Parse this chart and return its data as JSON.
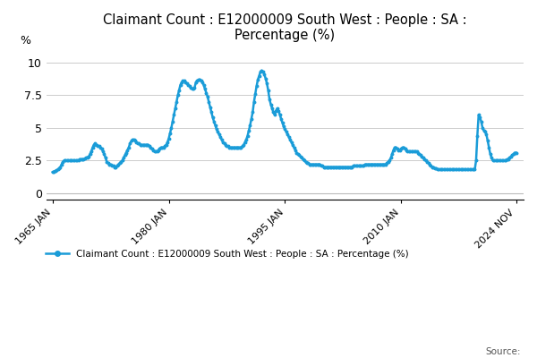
{
  "title": "Claimant Count : E12000009 South West : People : SA :\nPercentage (%)",
  "ylabel": "%",
  "legend_label": "Claimant Count : E12000009 South West : People : SA : Percentage (%)",
  "line_color": "#1a9cd8",
  "marker": "o",
  "markersize": 1.8,
  "linewidth": 1.8,
  "background_color": "#ffffff",
  "grid_color": "#cccccc",
  "yticks": [
    0,
    2.5,
    5,
    7.5,
    10
  ],
  "ylim": [
    -0.5,
    11
  ],
  "xtick_labels": [
    "1965 JAN",
    "1980 JAN",
    "1995 JAN",
    "2010 JAN",
    "2024 NOV"
  ],
  "source_text": "Source:",
  "xlim": [
    1964.2,
    2025.8
  ],
  "data": {
    "dates": [
      1965.0,
      1965.17,
      1965.33,
      1965.5,
      1965.67,
      1965.83,
      1966.0,
      1966.17,
      1966.33,
      1966.5,
      1966.67,
      1966.83,
      1967.0,
      1967.17,
      1967.33,
      1967.5,
      1967.67,
      1967.83,
      1968.0,
      1968.17,
      1968.33,
      1968.5,
      1968.67,
      1968.83,
      1969.0,
      1969.17,
      1969.33,
      1969.5,
      1969.67,
      1969.83,
      1970.0,
      1970.17,
      1970.33,
      1970.5,
      1970.67,
      1970.83,
      1971.0,
      1971.17,
      1971.33,
      1971.5,
      1971.67,
      1971.83,
      1972.0,
      1972.17,
      1972.33,
      1972.5,
      1972.67,
      1972.83,
      1973.0,
      1973.17,
      1973.33,
      1973.5,
      1973.67,
      1973.83,
      1974.0,
      1974.17,
      1974.33,
      1974.5,
      1974.67,
      1974.83,
      1975.0,
      1975.17,
      1975.33,
      1975.5,
      1975.67,
      1975.83,
      1976.0,
      1976.17,
      1976.33,
      1976.5,
      1976.67,
      1976.83,
      1977.0,
      1977.17,
      1977.33,
      1977.5,
      1977.67,
      1977.83,
      1978.0,
      1978.17,
      1978.33,
      1978.5,
      1978.67,
      1978.83,
      1979.0,
      1979.17,
      1979.33,
      1979.5,
      1979.67,
      1979.83,
      1980.0,
      1980.17,
      1980.33,
      1980.5,
      1980.67,
      1980.83,
      1981.0,
      1981.17,
      1981.33,
      1981.5,
      1981.67,
      1981.83,
      1982.0,
      1982.17,
      1982.33,
      1982.5,
      1982.67,
      1982.83,
      1983.0,
      1983.17,
      1983.33,
      1983.5,
      1983.67,
      1983.83,
      1984.0,
      1984.17,
      1984.33,
      1984.5,
      1984.67,
      1984.83,
      1985.0,
      1985.17,
      1985.33,
      1985.5,
      1985.67,
      1985.83,
      1986.0,
      1986.17,
      1986.33,
      1986.5,
      1986.67,
      1986.83,
      1987.0,
      1987.17,
      1987.33,
      1987.5,
      1987.67,
      1987.83,
      1988.0,
      1988.17,
      1988.33,
      1988.5,
      1988.67,
      1988.83,
      1989.0,
      1989.17,
      1989.33,
      1989.5,
      1989.67,
      1989.83,
      1990.0,
      1990.17,
      1990.33,
      1990.5,
      1990.67,
      1990.83,
      1991.0,
      1991.17,
      1991.33,
      1991.5,
      1991.67,
      1991.83,
      1992.0,
      1992.17,
      1992.33,
      1992.5,
      1992.67,
      1992.83,
      1993.0,
      1993.17,
      1993.33,
      1993.5,
      1993.67,
      1993.83,
      1994.0,
      1994.17,
      1994.33,
      1994.5,
      1994.67,
      1994.83,
      1995.0,
      1995.17,
      1995.33,
      1995.5,
      1995.67,
      1995.83,
      1996.0,
      1996.17,
      1996.33,
      1996.5,
      1996.67,
      1996.83,
      1997.0,
      1997.17,
      1997.33,
      1997.5,
      1997.67,
      1997.83,
      1998.0,
      1998.17,
      1998.33,
      1998.5,
      1998.67,
      1998.83,
      1999.0,
      1999.17,
      1999.33,
      1999.5,
      1999.67,
      1999.83,
      2000.0,
      2000.17,
      2000.33,
      2000.5,
      2000.67,
      2000.83,
      2001.0,
      2001.17,
      2001.33,
      2001.5,
      2001.67,
      2001.83,
      2002.0,
      2002.17,
      2002.33,
      2002.5,
      2002.67,
      2002.83,
      2003.0,
      2003.17,
      2003.33,
      2003.5,
      2003.67,
      2003.83,
      2004.0,
      2004.17,
      2004.33,
      2004.5,
      2004.67,
      2004.83,
      2005.0,
      2005.17,
      2005.33,
      2005.5,
      2005.67,
      2005.83,
      2006.0,
      2006.17,
      2006.33,
      2006.5,
      2006.67,
      2006.83,
      2007.0,
      2007.17,
      2007.33,
      2007.5,
      2007.67,
      2007.83,
      2008.0,
      2008.17,
      2008.33,
      2008.5,
      2008.67,
      2008.83,
      2009.0,
      2009.17,
      2009.33,
      2009.5,
      2009.67,
      2009.83,
      2010.0,
      2010.17,
      2010.33,
      2010.5,
      2010.67,
      2010.83,
      2011.0,
      2011.17,
      2011.33,
      2011.5,
      2011.67,
      2011.83,
      2012.0,
      2012.17,
      2012.33,
      2012.5,
      2012.67,
      2012.83,
      2013.0,
      2013.17,
      2013.33,
      2013.5,
      2013.67,
      2013.83,
      2014.0,
      2014.17,
      2014.33,
      2014.5,
      2014.67,
      2014.83,
      2015.0,
      2015.17,
      2015.33,
      2015.5,
      2015.67,
      2015.83,
      2016.0,
      2016.17,
      2016.33,
      2016.5,
      2016.67,
      2016.83,
      2017.0,
      2017.17,
      2017.33,
      2017.5,
      2017.67,
      2017.83,
      2018.0,
      2018.17,
      2018.33,
      2018.5,
      2018.67,
      2018.83,
      2019.0,
      2019.17,
      2019.33,
      2019.5,
      2019.67,
      2019.83,
      2020.0,
      2020.17,
      2020.33,
      2020.5,
      2020.67,
      2020.83,
      2021.0,
      2021.17,
      2021.33,
      2021.5,
      2021.67,
      2021.83,
      2022.0,
      2022.17,
      2022.33,
      2022.5,
      2022.67,
      2022.83,
      2023.0,
      2023.17,
      2023.33,
      2023.5,
      2023.67,
      2023.83,
      2024.0,
      2024.17,
      2024.33,
      2024.5,
      2024.67,
      2024.83
    ],
    "values": [
      1.6,
      1.65,
      1.7,
      1.75,
      1.8,
      1.9,
      2.0,
      2.2,
      2.4,
      2.5,
      2.5,
      2.5,
      2.5,
      2.5,
      2.5,
      2.5,
      2.5,
      2.5,
      2.5,
      2.5,
      2.5,
      2.6,
      2.6,
      2.6,
      2.6,
      2.65,
      2.7,
      2.75,
      2.8,
      3.0,
      3.2,
      3.5,
      3.7,
      3.8,
      3.7,
      3.6,
      3.6,
      3.5,
      3.4,
      3.2,
      3.0,
      2.7,
      2.4,
      2.3,
      2.2,
      2.2,
      2.1,
      2.1,
      2.0,
      2.0,
      2.1,
      2.2,
      2.3,
      2.4,
      2.5,
      2.7,
      2.9,
      3.1,
      3.3,
      3.5,
      3.8,
      4.0,
      4.1,
      4.1,
      4.0,
      3.9,
      3.8,
      3.8,
      3.7,
      3.7,
      3.7,
      3.7,
      3.7,
      3.7,
      3.7,
      3.6,
      3.5,
      3.4,
      3.3,
      3.2,
      3.2,
      3.2,
      3.3,
      3.4,
      3.5,
      3.5,
      3.5,
      3.6,
      3.7,
      3.9,
      4.2,
      4.6,
      5.0,
      5.5,
      6.0,
      6.5,
      7.0,
      7.5,
      7.9,
      8.3,
      8.5,
      8.6,
      8.6,
      8.5,
      8.4,
      8.3,
      8.2,
      8.1,
      8.0,
      8.0,
      8.1,
      8.5,
      8.6,
      8.7,
      8.7,
      8.6,
      8.5,
      8.3,
      8.0,
      7.7,
      7.4,
      7.0,
      6.6,
      6.2,
      5.8,
      5.5,
      5.2,
      4.9,
      4.7,
      4.5,
      4.3,
      4.1,
      3.9,
      3.8,
      3.7,
      3.6,
      3.6,
      3.5,
      3.5,
      3.5,
      3.5,
      3.5,
      3.5,
      3.5,
      3.5,
      3.5,
      3.5,
      3.6,
      3.7,
      3.9,
      4.1,
      4.4,
      4.8,
      5.2,
      5.7,
      6.2,
      7.0,
      7.6,
      8.2,
      8.7,
      9.0,
      9.3,
      9.4,
      9.3,
      9.1,
      8.8,
      8.4,
      7.9,
      7.2,
      6.8,
      6.5,
      6.2,
      6.0,
      6.3,
      6.5,
      6.3,
      6.0,
      5.7,
      5.4,
      5.1,
      4.9,
      4.7,
      4.5,
      4.3,
      4.1,
      3.9,
      3.7,
      3.5,
      3.3,
      3.1,
      3.0,
      2.9,
      2.8,
      2.7,
      2.6,
      2.5,
      2.4,
      2.3,
      2.3,
      2.2,
      2.2,
      2.2,
      2.2,
      2.2,
      2.2,
      2.2,
      2.2,
      2.2,
      2.1,
      2.1,
      2.0,
      2.0,
      2.0,
      2.0,
      2.0,
      2.0,
      2.0,
      2.0,
      2.0,
      2.0,
      2.0,
      2.0,
      2.0,
      2.0,
      2.0,
      2.0,
      2.0,
      2.0,
      2.0,
      2.0,
      2.0,
      2.0,
      2.0,
      2.1,
      2.1,
      2.1,
      2.1,
      2.1,
      2.1,
      2.1,
      2.1,
      2.1,
      2.2,
      2.2,
      2.2,
      2.2,
      2.2,
      2.2,
      2.2,
      2.2,
      2.2,
      2.2,
      2.2,
      2.2,
      2.2,
      2.2,
      2.2,
      2.2,
      2.2,
      2.3,
      2.4,
      2.5,
      2.7,
      3.0,
      3.3,
      3.5,
      3.5,
      3.4,
      3.3,
      3.3,
      3.4,
      3.5,
      3.5,
      3.4,
      3.3,
      3.2,
      3.2,
      3.2,
      3.2,
      3.2,
      3.2,
      3.2,
      3.2,
      3.1,
      3.0,
      2.9,
      2.8,
      2.7,
      2.6,
      2.5,
      2.4,
      2.3,
      2.2,
      2.1,
      2.0,
      2.0,
      1.9,
      1.9,
      1.8,
      1.8,
      1.8,
      1.8,
      1.8,
      1.8,
      1.8,
      1.8,
      1.8,
      1.8,
      1.8,
      1.8,
      1.8,
      1.8,
      1.8,
      1.8,
      1.8,
      1.8,
      1.8,
      1.8,
      1.8,
      1.8,
      1.8,
      1.8,
      1.8,
      1.8,
      1.8,
      1.8,
      1.8,
      1.8,
      2.5,
      4.4,
      6.0,
      5.8,
      5.5,
      5.0,
      4.8,
      4.7,
      4.5,
      4.0,
      3.5,
      3.0,
      2.7,
      2.5,
      2.5,
      2.5,
      2.5,
      2.5,
      2.5,
      2.5,
      2.5,
      2.5,
      2.5,
      2.5,
      2.6,
      2.6,
      2.7,
      2.8,
      2.9,
      3.0,
      3.1,
      3.1
    ]
  }
}
